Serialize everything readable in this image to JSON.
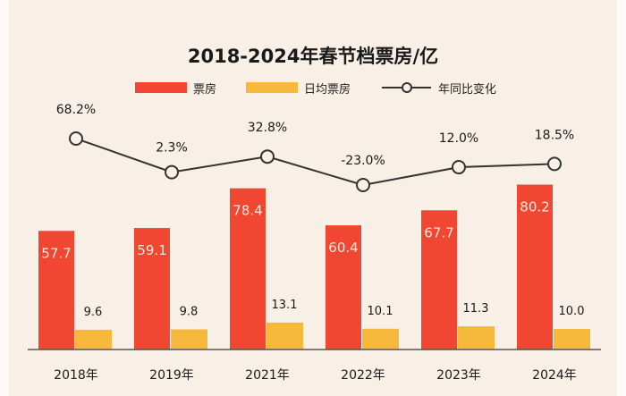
{
  "chart_data": {
    "type": "bar",
    "title": "2018-2024年春节档票房/亿",
    "categories": [
      "2018年",
      "2019年",
      "2021年",
      "2022年",
      "2023年",
      "2024年"
    ],
    "series": [
      {
        "name": "票房",
        "kind": "bar",
        "color": "#f04632",
        "values": [
          57.7,
          59.1,
          78.4,
          60.4,
          67.7,
          80.2
        ]
      },
      {
        "name": "日均票房",
        "kind": "bar",
        "color": "#f7b93c",
        "values": [
          9.6,
          9.8,
          13.1,
          10.1,
          11.3,
          10.0
        ]
      },
      {
        "name": "年同比变化",
        "kind": "line",
        "color": "#333333",
        "values": [
          68.2,
          2.3,
          32.8,
          -23.0,
          12.0,
          18.5
        ],
        "labels": [
          "68.2%",
          "2.3%",
          "32.8%",
          "-23.0%",
          "12.0%",
          "18.5%"
        ]
      }
    ],
    "bar_labels": [
      [
        "57.7",
        "59.1",
        "78.4",
        "60.4",
        "67.7",
        "80.2"
      ],
      [
        "9.6",
        "9.8",
        "13.1",
        "10.1",
        "11.3",
        "10.0"
      ]
    ],
    "legend_position": "top",
    "grid": false
  }
}
